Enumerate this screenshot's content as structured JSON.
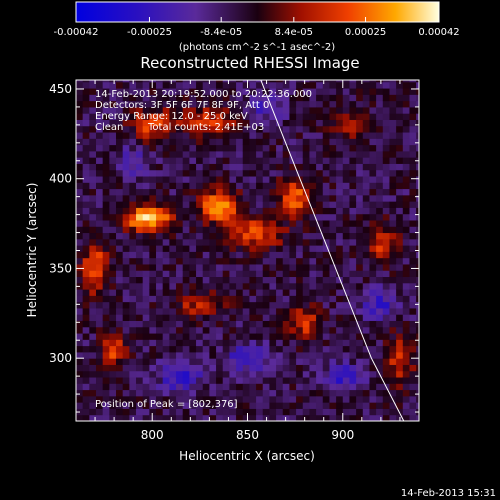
{
  "chart_data": {
    "type": "heatmap",
    "title": "Reconstructed RHESSI Image",
    "xlabel": "Heliocentric X (arcsec)",
    "ylabel": "Heliocentric Y (arcsec)",
    "xlim": [
      760,
      940
    ],
    "ylim": [
      265,
      455
    ],
    "x_ticks": [
      800,
      850,
      900
    ],
    "y_ticks": [
      300,
      350,
      400,
      450
    ],
    "colorbar": {
      "ticks": [
        "-0.00042",
        "-0.00025",
        "-8.4e-05",
        "8.4e-05",
        "0.00025",
        "0.00042"
      ],
      "tick_values": [
        -0.00042,
        -0.00025,
        -8.4e-05,
        8.4e-05,
        0.00025,
        0.00042
      ],
      "range": [
        -0.00042,
        0.00042
      ],
      "unit_label": "(photons cm^-2 s^-1 asec^-2)"
    },
    "annotations": {
      "time_range": "14-Feb-2013 20:19:52.000 to 20:22:36.000",
      "detectors": "Detectors: 3F 5F 6F 7F 8F 9F, Att 0",
      "energy_range": "Energy Range: 12.0 - 25.0 keV",
      "clean": "Clean",
      "total_counts": "Total counts: 2.41E+03",
      "peak": "Position of Peak = [802,376]"
    },
    "peak_position": [
      802,
      376
    ],
    "blobs": [
      {
        "x": 798,
        "y": 378,
        "sx": 9,
        "sy": 5,
        "amp": 1.0
      },
      {
        "x": 835,
        "y": 385,
        "sx": 7,
        "sy": 6,
        "amp": 0.9
      },
      {
        "x": 770,
        "y": 350,
        "sx": 5,
        "sy": 10,
        "amp": 0.7
      },
      {
        "x": 800,
        "y": 430,
        "sx": 8,
        "sy": 7,
        "amp": 0.55
      },
      {
        "x": 830,
        "y": 432,
        "sx": 10,
        "sy": 6,
        "amp": 0.5
      },
      {
        "x": 855,
        "y": 370,
        "sx": 10,
        "sy": 6,
        "amp": 0.6
      },
      {
        "x": 875,
        "y": 390,
        "sx": 6,
        "sy": 7,
        "amp": 0.7
      },
      {
        "x": 780,
        "y": 305,
        "sx": 5,
        "sy": 6,
        "amp": 0.6
      },
      {
        "x": 825,
        "y": 330,
        "sx": 9,
        "sy": 5,
        "amp": 0.45
      },
      {
        "x": 880,
        "y": 320,
        "sx": 6,
        "sy": 6,
        "amp": 0.55
      },
      {
        "x": 920,
        "y": 365,
        "sx": 6,
        "sy": 8,
        "amp": 0.5
      },
      {
        "x": 905,
        "y": 430,
        "sx": 7,
        "sy": 6,
        "amp": 0.4
      },
      {
        "x": 930,
        "y": 300,
        "sx": 5,
        "sy": 10,
        "amp": 0.5
      },
      {
        "x": 850,
        "y": 300,
        "sx": 8,
        "sy": 5,
        "amp": -0.55
      },
      {
        "x": 815,
        "y": 290,
        "sx": 8,
        "sy": 6,
        "amp": -0.5
      },
      {
        "x": 920,
        "y": 330,
        "sx": 7,
        "sy": 6,
        "amp": -0.45
      },
      {
        "x": 900,
        "y": 290,
        "sx": 7,
        "sy": 5,
        "amp": -0.5
      },
      {
        "x": 860,
        "y": 440,
        "sx": 7,
        "sy": 5,
        "amp": -0.4
      },
      {
        "x": 790,
        "y": 410,
        "sx": 6,
        "sy": 6,
        "amp": -0.35
      }
    ],
    "limb": {
      "x": [
        857,
        870,
        885,
        900,
        915,
        932
      ],
      "y": [
        455,
        420,
        380,
        340,
        300,
        265
      ]
    }
  },
  "footer": {
    "timestamp": "14-Feb-2013 15:31"
  }
}
